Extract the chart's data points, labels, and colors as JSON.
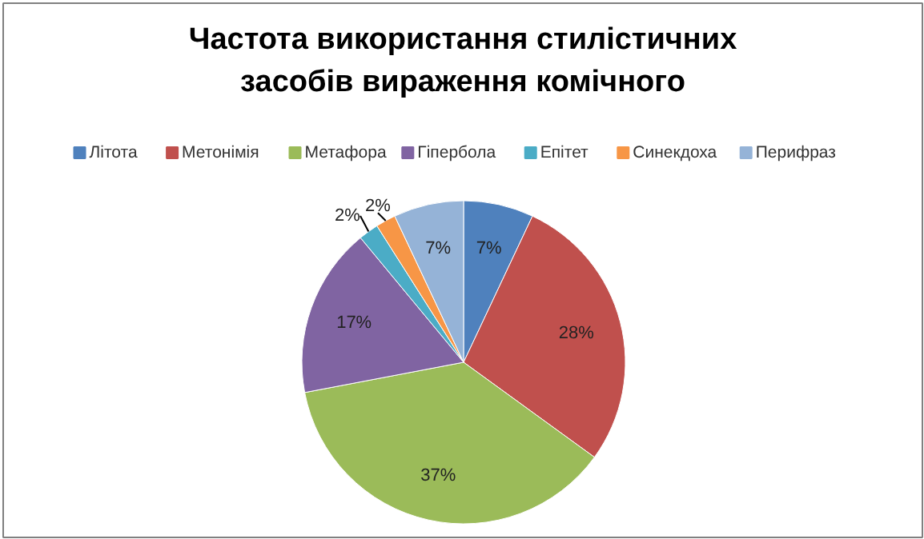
{
  "chart_data": {
    "type": "pie",
    "title": "Частота використання стилістичних засобів вираження комічного",
    "categories": [
      "Літота",
      "Метонімія",
      "Метафора",
      "Гіпербола",
      "Епітет",
      "Синекдоха",
      "Перифраз"
    ],
    "values": [
      7,
      28,
      37,
      17,
      2,
      2,
      7
    ],
    "colors": [
      "#4f81bd",
      "#c0504d",
      "#9bbb59",
      "#8064a2",
      "#4bacc6",
      "#f79646",
      "#95b3d7"
    ],
    "value_labels": [
      "7%",
      "28%",
      "37%",
      "17%",
      "2%",
      "2%",
      "7%"
    ],
    "legend": "top"
  }
}
